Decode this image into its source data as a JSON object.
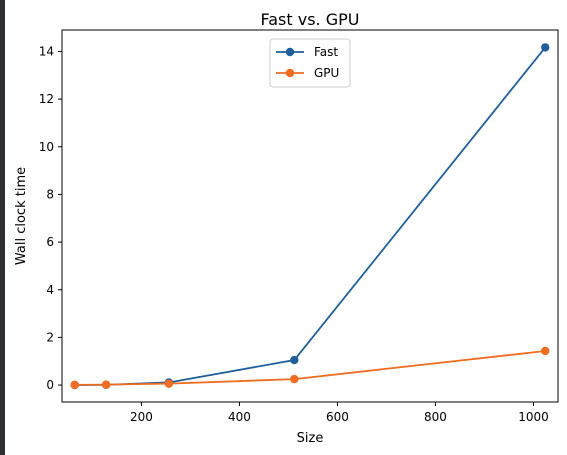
{
  "chart_data": {
    "type": "line",
    "title": "Fast vs. GPU",
    "xlabel": "Size",
    "ylabel": "Wall clock time",
    "x": [
      64,
      128,
      256,
      512,
      1024
    ],
    "xlim": [
      38,
      1050
    ],
    "ylim": [
      -0.71,
      14.9
    ],
    "xticks": [
      200,
      400,
      600,
      800,
      1000
    ],
    "yticks": [
      0,
      2,
      4,
      6,
      8,
      10,
      12,
      14
    ],
    "grid": false,
    "legend_position": "top-center",
    "series": [
      {
        "name": "Fast",
        "color": "#1f5f9b",
        "values": [
          0.003,
          0.012,
          0.11,
          1.05,
          14.17
        ]
      },
      {
        "name": "GPU",
        "color": "#ef6c20",
        "values": [
          0.01,
          0.02,
          0.06,
          0.25,
          1.43
        ]
      }
    ]
  }
}
